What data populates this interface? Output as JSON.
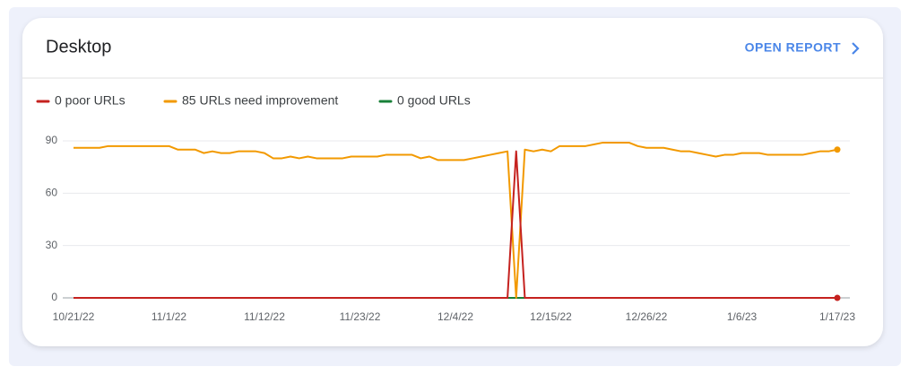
{
  "header": {
    "title": "Desktop",
    "action": "OPEN REPORT"
  },
  "chart_data": {
    "type": "line",
    "categories": [
      "10/21/22",
      null,
      null,
      null,
      null,
      null,
      null,
      null,
      null,
      null,
      null,
      "11/1/22",
      null,
      null,
      null,
      null,
      null,
      null,
      null,
      null,
      null,
      null,
      "11/12/22",
      null,
      null,
      null,
      null,
      null,
      null,
      null,
      null,
      null,
      null,
      "11/23/22",
      null,
      null,
      null,
      null,
      null,
      null,
      null,
      null,
      null,
      null,
      "12/4/22",
      null,
      null,
      null,
      null,
      null,
      null,
      null,
      null,
      null,
      null,
      "12/15/22",
      null,
      null,
      null,
      null,
      null,
      null,
      null,
      null,
      null,
      null,
      "12/26/22",
      null,
      null,
      null,
      null,
      null,
      null,
      null,
      null,
      null,
      null,
      "1/6/23",
      null,
      null,
      null,
      null,
      null,
      null,
      null,
      null,
      null,
      null,
      "1/17/23"
    ],
    "series": [
      {
        "name": "0 poor URLs",
        "color": "#c5221f",
        "values": [
          0,
          0,
          0,
          0,
          0,
          0,
          0,
          0,
          0,
          0,
          0,
          0,
          0,
          0,
          0,
          0,
          0,
          0,
          0,
          0,
          0,
          0,
          0,
          0,
          0,
          0,
          0,
          0,
          0,
          0,
          0,
          0,
          0,
          0,
          0,
          0,
          0,
          0,
          0,
          0,
          0,
          0,
          0,
          0,
          0,
          0,
          0,
          0,
          0,
          0,
          0,
          84,
          0,
          0,
          0,
          0,
          0,
          0,
          0,
          0,
          0,
          0,
          0,
          0,
          0,
          0,
          0,
          0,
          0,
          0,
          0,
          0,
          0,
          0,
          0,
          0,
          0,
          0,
          0,
          0,
          0,
          0,
          0,
          0,
          0,
          0,
          0,
          0,
          0
        ]
      },
      {
        "name": "85 URLs need improvement",
        "color": "#f29900",
        "values": [
          86,
          86,
          86,
          86,
          87,
          87,
          87,
          87,
          87,
          87,
          87,
          87,
          85,
          85,
          85,
          83,
          84,
          83,
          83,
          84,
          84,
          84,
          83,
          80,
          80,
          81,
          80,
          81,
          80,
          80,
          80,
          80,
          81,
          81,
          81,
          81,
          82,
          82,
          82,
          82,
          80,
          81,
          79,
          79,
          79,
          79,
          80,
          81,
          82,
          83,
          84,
          0,
          85,
          84,
          85,
          84,
          87,
          87,
          87,
          87,
          88,
          89,
          89,
          89,
          89,
          87,
          86,
          86,
          86,
          85,
          84,
          84,
          83,
          82,
          81,
          82,
          82,
          83,
          83,
          83,
          82,
          82,
          82,
          82,
          82,
          83,
          84,
          84,
          85
        ]
      },
      {
        "name": "0 good URLs",
        "color": "#188038",
        "values": [
          0,
          0,
          0,
          0,
          0,
          0,
          0,
          0,
          0,
          0,
          0,
          0,
          0,
          0,
          0,
          0,
          0,
          0,
          0,
          0,
          0,
          0,
          0,
          0,
          0,
          0,
          0,
          0,
          0,
          0,
          0,
          0,
          0,
          0,
          0,
          0,
          0,
          0,
          0,
          0,
          0,
          0,
          0,
          0,
          0,
          0,
          0,
          0,
          0,
          0,
          0,
          0,
          0,
          0,
          0,
          0,
          0,
          0,
          0,
          0,
          0,
          0,
          0,
          0,
          0,
          0,
          0,
          0,
          0,
          0,
          0,
          0,
          0,
          0,
          0,
          0,
          0,
          0,
          0,
          0,
          0,
          0,
          0,
          0,
          0,
          0,
          0,
          0,
          0
        ]
      }
    ],
    "ylim": [
      0,
      90
    ],
    "yticks": [
      0,
      30,
      60,
      90
    ],
    "grid": true
  }
}
